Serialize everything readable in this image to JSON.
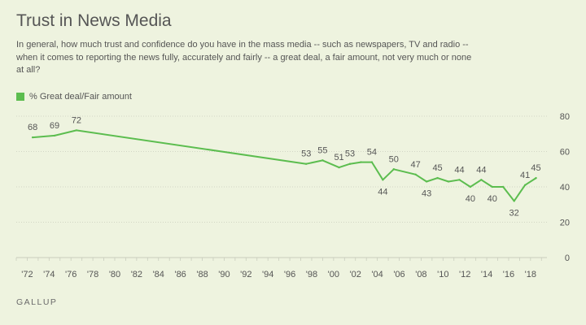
{
  "header": {
    "title": "Trust in News Media",
    "subtitle": "In general, how much trust and confidence do you have in the mass media -- such as newspapers, TV and radio -- when it comes to reporting the news fully, accurately and fairly -- a great deal, a fair amount, not very much or none at all?"
  },
  "footer": {
    "source": "GALLUP"
  },
  "colors": {
    "series": "#5cbd4f",
    "grid": "#c9cdbd",
    "background": "#eef3df"
  },
  "chart_data": {
    "type": "line",
    "title": "Trust in News Media",
    "xlabel": "",
    "ylabel": "",
    "xlim": [
      1971,
      2019.5
    ],
    "ylim": [
      0,
      80
    ],
    "y_ticks": [
      0,
      20,
      40,
      60,
      80
    ],
    "x_ticks": [
      1972,
      1974,
      1976,
      1978,
      1980,
      1982,
      1984,
      1986,
      1988,
      1990,
      1992,
      1994,
      1996,
      1998,
      2000,
      2002,
      2004,
      2006,
      2008,
      2010,
      2012,
      2014,
      2016,
      2018
    ],
    "x_tick_labels": [
      "'72",
      "'74",
      "'76",
      "'78",
      "'80",
      "'82",
      "'84",
      "'86",
      "'88",
      "'90",
      "'92",
      "'94",
      "'96",
      "'98",
      "'00",
      "'02",
      "'04",
      "'06",
      "'08",
      "'10",
      "'12",
      "'14",
      "'16",
      "'18"
    ],
    "grid": "horizontal",
    "legend_position": "top-left",
    "series": [
      {
        "name": "% Great deal/Fair amount",
        "points": [
          {
            "x": 1972.5,
            "y": 68,
            "label": "68",
            "pos": "above"
          },
          {
            "x": 1974.5,
            "y": 69,
            "label": "69",
            "pos": "above"
          },
          {
            "x": 1976.5,
            "y": 72,
            "label": "72",
            "pos": "above"
          },
          {
            "x": 1997.5,
            "y": 53,
            "label": "53",
            "pos": "above"
          },
          {
            "x": 1999.0,
            "y": 55,
            "label": "55",
            "pos": "above"
          },
          {
            "x": 2000.5,
            "y": 51,
            "label": "51",
            "pos": "above"
          },
          {
            "x": 2001.5,
            "y": 53,
            "label": "53",
            "pos": "above"
          },
          {
            "x": 2002.5,
            "y": 54
          },
          {
            "x": 2003.5,
            "y": 54,
            "label": "54",
            "pos": "above"
          },
          {
            "x": 2004.5,
            "y": 44,
            "label": "44",
            "pos": "below"
          },
          {
            "x": 2005.5,
            "y": 50,
            "label": "50",
            "pos": "above"
          },
          {
            "x": 2007.5,
            "y": 47,
            "label": "47",
            "pos": "above"
          },
          {
            "x": 2008.5,
            "y": 43,
            "label": "43",
            "pos": "below"
          },
          {
            "x": 2009.5,
            "y": 45,
            "label": "45",
            "pos": "above"
          },
          {
            "x": 2010.5,
            "y": 43
          },
          {
            "x": 2011.5,
            "y": 44,
            "label": "44",
            "pos": "above"
          },
          {
            "x": 2012.5,
            "y": 40,
            "label": "40",
            "pos": "below"
          },
          {
            "x": 2013.5,
            "y": 44,
            "label": "44",
            "pos": "above"
          },
          {
            "x": 2014.5,
            "y": 40,
            "label": "40",
            "pos": "below"
          },
          {
            "x": 2015.5,
            "y": 40
          },
          {
            "x": 2016.5,
            "y": 32,
            "label": "32",
            "pos": "below"
          },
          {
            "x": 2017.5,
            "y": 41,
            "label": "41",
            "pos": "above"
          },
          {
            "x": 2018.5,
            "y": 45,
            "label": "45",
            "pos": "above"
          }
        ]
      }
    ]
  }
}
